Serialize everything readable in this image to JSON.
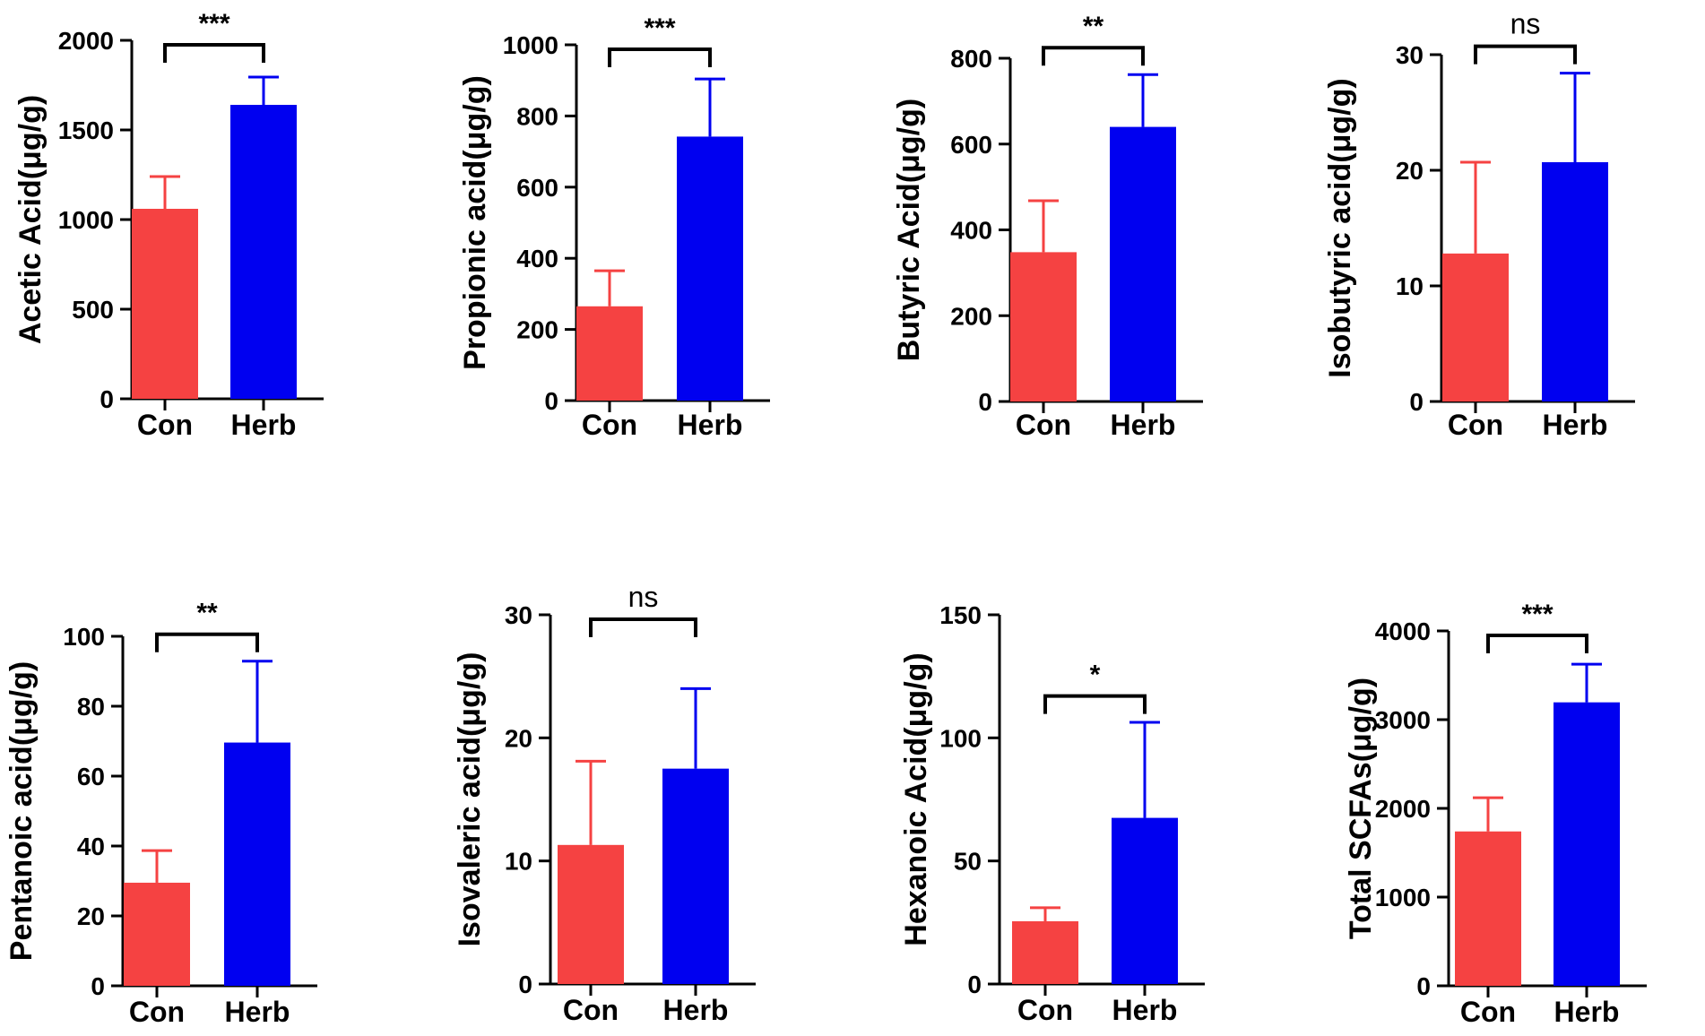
{
  "colors": {
    "con": "#f54242",
    "herb": "#0000f0",
    "axis": "#000000"
  },
  "chart_data": [
    {
      "type": "bar",
      "ylabel": "Acetic Acid(μg/g)",
      "categories": [
        "Con",
        "Herb"
      ],
      "values": [
        1060,
        1640
      ],
      "errors": [
        180,
        155
      ],
      "ylim": [
        0,
        2000
      ],
      "yticks": [
        0,
        500,
        1000,
        1500,
        2000
      ],
      "yticklabels": [
        "0",
        "500",
        "1000",
        "1500",
        "2000"
      ],
      "significance": "***"
    },
    {
      "type": "bar",
      "ylabel": "Propionic acid(μg/g)",
      "categories": [
        "Con",
        "Herb"
      ],
      "values": [
        265,
        742
      ],
      "errors": [
        100,
        162
      ],
      "ylim": [
        0,
        1000
      ],
      "yticks": [
        0,
        200,
        400,
        600,
        800,
        1000
      ],
      "yticklabels": [
        "0",
        "200",
        "400",
        "600",
        "800",
        "1000"
      ],
      "significance": "***"
    },
    {
      "type": "bar",
      "ylabel": "Butyric Acid(μg/g)",
      "categories": [
        "Con",
        "Herb"
      ],
      "values": [
        348,
        640
      ],
      "errors": [
        120,
        122
      ],
      "ylim": [
        0,
        800
      ],
      "yticks": [
        0,
        200,
        400,
        600,
        800
      ],
      "yticklabels": [
        "0",
        "200",
        "400",
        "600",
        "800"
      ],
      "significance": "**"
    },
    {
      "type": "bar",
      "ylabel": "Isobutyric acid(μg/g)",
      "categories": [
        "Con",
        "Herb"
      ],
      "values": [
        12.8,
        20.7
      ],
      "errors": [
        7.9,
        7.7
      ],
      "ylim": [
        0,
        30
      ],
      "yticks": [
        0,
        10,
        20,
        30
      ],
      "yticklabels": [
        "0",
        "10",
        "20",
        "30"
      ],
      "significance": "ns"
    },
    {
      "type": "bar",
      "ylabel": "Pentanoic acid(μg/g)",
      "categories": [
        "Con",
        "Herb"
      ],
      "values": [
        29.5,
        69.6
      ],
      "errors": [
        9.2,
        23.3
      ],
      "ylim": [
        0,
        100
      ],
      "yticks": [
        0,
        20,
        40,
        60,
        80,
        100
      ],
      "yticklabels": [
        "0",
        "20",
        "40",
        "60",
        "80",
        "100"
      ],
      "significance": "**"
    },
    {
      "type": "bar",
      "ylabel": "Isovaleric acid(μg/g)",
      "categories": [
        "Con",
        "Herb"
      ],
      "values": [
        11.3,
        17.5
      ],
      "errors": [
        6.8,
        6.5
      ],
      "ylim": [
        0,
        30
      ],
      "yticks": [
        0,
        10,
        20,
        30
      ],
      "yticklabels": [
        "0",
        "10",
        "20",
        "30"
      ],
      "significance": "ns"
    },
    {
      "type": "bar",
      "ylabel": "Hexanoic Acid(μg/g)",
      "categories": [
        "Con",
        "Herb"
      ],
      "values": [
        25.5,
        67.5
      ],
      "errors": [
        5.5,
        38.8
      ],
      "ylim": [
        0,
        150
      ],
      "yticks": [
        0,
        50,
        100,
        150
      ],
      "yticklabels": [
        "0",
        "50",
        "100",
        "150"
      ],
      "significance": "*"
    },
    {
      "type": "bar",
      "ylabel": "Total SCFAs(μg/g)",
      "categories": [
        "Con",
        "Herb"
      ],
      "values": [
        1740,
        3195
      ],
      "errors": [
        380,
        430
      ],
      "ylim": [
        0,
        4000
      ],
      "yticks": [
        0,
        1000,
        2000,
        3000,
        4000
      ],
      "yticklabels": [
        "0",
        "1000",
        "2000",
        "3000",
        "4000"
      ],
      "significance": "***"
    }
  ]
}
